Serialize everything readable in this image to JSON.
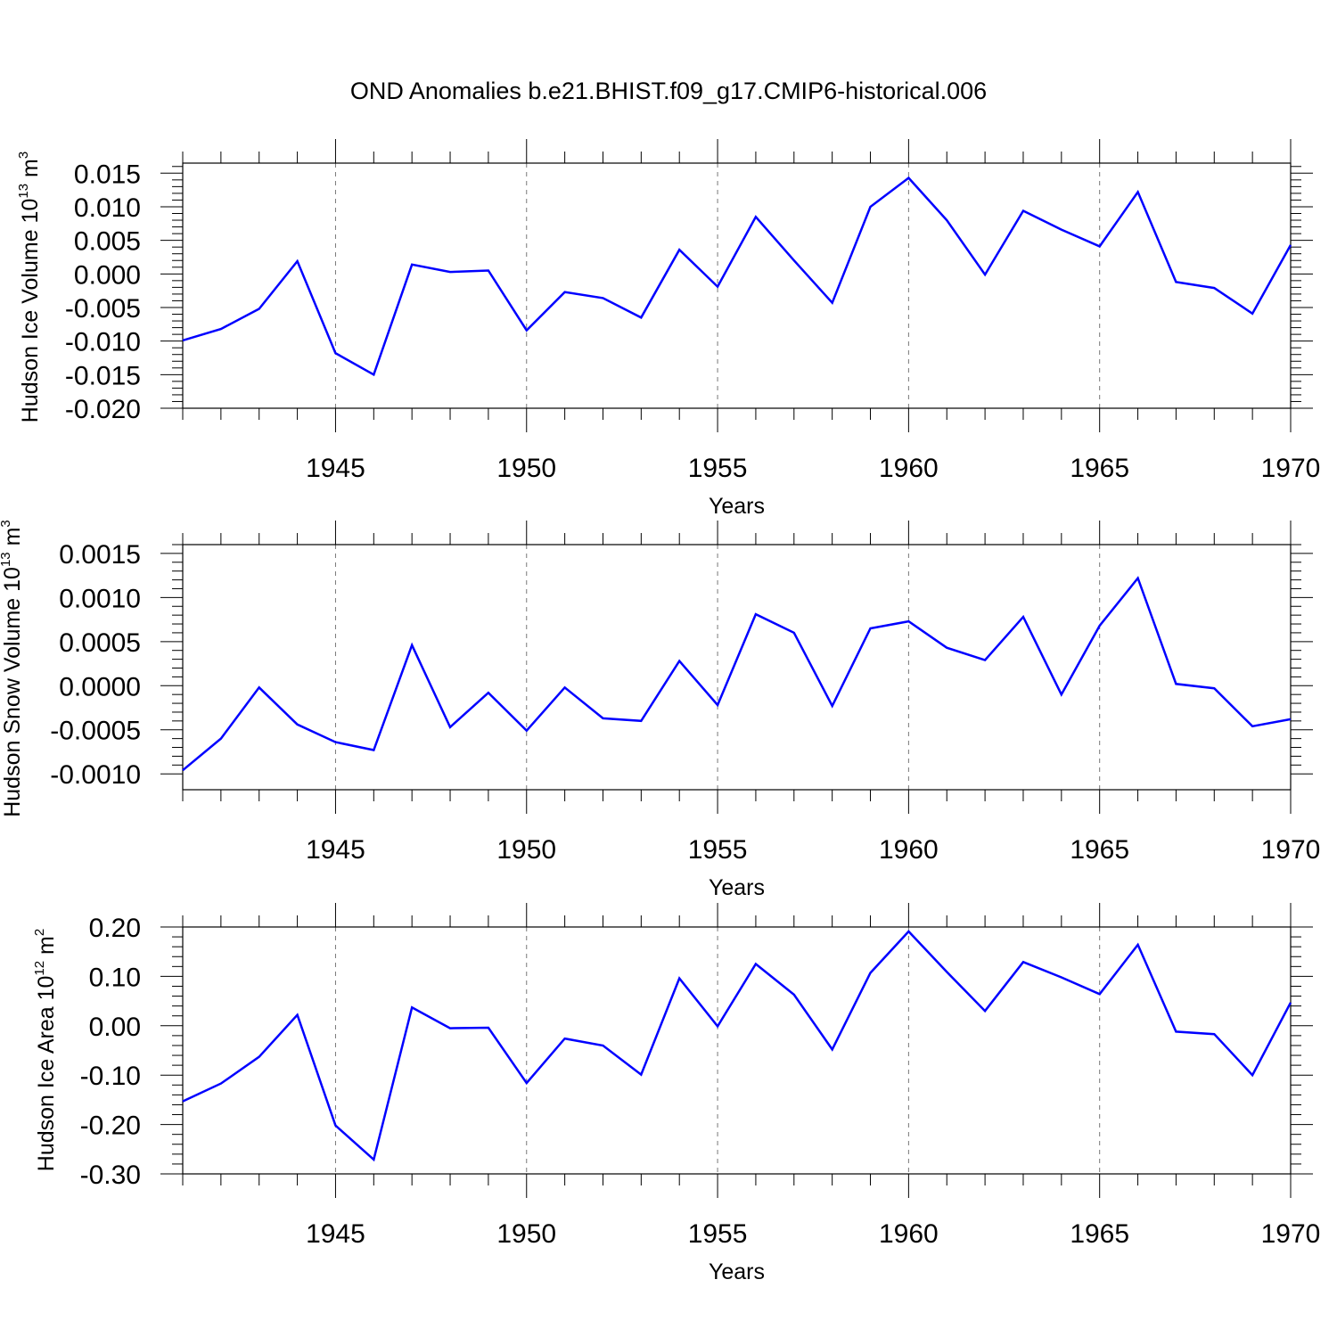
{
  "figure": {
    "title": "OND Anomalies b.e21.BHIST.f09_g17.CMIP6-historical.006"
  },
  "chart_data": [
    {
      "type": "line",
      "title": "OND Anomalies b.e21.BHIST.f09_g17.CMIP6-historical.006",
      "xlabel": "Years",
      "ylabel": {
        "pre": "Hudson Ice Volume 10",
        "sup1": "13",
        "mid": " m",
        "sup2": "3"
      },
      "xlim": [
        1941,
        1970
      ],
      "ylim": [
        -0.02,
        0.0165
      ],
      "xticks": [
        1945,
        1950,
        1955,
        1960,
        1965,
        1970
      ],
      "xtick_labels": [
        "1945",
        "1950",
        "1955",
        "1960",
        "1965",
        "1970"
      ],
      "yticks": [
        -0.02,
        -0.015,
        -0.01,
        -0.005,
        0.0,
        0.005,
        0.01,
        0.015
      ],
      "ytick_labels": [
        "-0.020",
        "-0.015",
        "-0.010",
        "-0.005",
        "0.000",
        "0.005",
        "0.010",
        "0.015"
      ],
      "series": [
        {
          "name": "Hudson Ice Volume",
          "color": "#0000ff",
          "x": [
            1941,
            1942,
            1943,
            1944,
            1945,
            1946,
            1947,
            1948,
            1949,
            1950,
            1951,
            1952,
            1953,
            1954,
            1955,
            1956,
            1957,
            1958,
            1959,
            1960,
            1961,
            1962,
            1963,
            1964,
            1965,
            1966,
            1967,
            1968,
            1969,
            1970
          ],
          "values": [
            -0.0099,
            -0.0082,
            -0.0052,
            0.0019,
            -0.0118,
            -0.015,
            0.0014,
            0.0003,
            0.0005,
            -0.0084,
            -0.0027,
            -0.0036,
            -0.0065,
            0.0036,
            -0.0019,
            0.0085,
            0.002,
            -0.0043,
            0.01,
            0.0143,
            0.008,
            -0.0001,
            0.0094,
            0.0066,
            0.0041,
            0.0122,
            -0.0012,
            -0.0021,
            -0.0059,
            0.0043
          ]
        }
      ]
    },
    {
      "type": "line",
      "xlabel": "Years",
      "ylabel": {
        "pre": "Hudson Snow Volume 10",
        "sup1": "13",
        "mid": " m",
        "sup2": "3"
      },
      "xlim": [
        1941,
        1970
      ],
      "ylim": [
        -0.00118,
        0.0016
      ],
      "xticks": [
        1945,
        1950,
        1955,
        1960,
        1965,
        1970
      ],
      "xtick_labels": [
        "1945",
        "1950",
        "1955",
        "1960",
        "1965",
        "1970"
      ],
      "yticks": [
        -0.001,
        -0.0005,
        0.0,
        0.0005,
        0.001,
        0.0015
      ],
      "ytick_labels": [
        "-0.0010",
        "-0.0005",
        "0.0000",
        "0.0005",
        "0.0010",
        "0.0015"
      ],
      "series": [
        {
          "name": "Hudson Snow Volume",
          "color": "#0000ff",
          "x": [
            1941,
            1942,
            1943,
            1944,
            1945,
            1946,
            1947,
            1948,
            1949,
            1950,
            1951,
            1952,
            1953,
            1954,
            1955,
            1956,
            1957,
            1958,
            1959,
            1960,
            1961,
            1962,
            1963,
            1964,
            1965,
            1966,
            1967,
            1968,
            1969,
            1970
          ],
          "values": [
            -0.00096,
            -0.0006,
            -2e-05,
            -0.00044,
            -0.00064,
            -0.00073,
            0.00046,
            -0.00047,
            -8e-05,
            -0.00051,
            -2e-05,
            -0.00037,
            -0.0004,
            0.00028,
            -0.00022,
            0.00081,
            0.0006,
            -0.00023,
            0.00065,
            0.00073,
            0.00043,
            0.00029,
            0.00078,
            -0.0001,
            0.00068,
            0.00122,
            2e-05,
            -3e-05,
            -0.00046,
            -0.00038
          ]
        }
      ]
    },
    {
      "type": "line",
      "xlabel": "Years",
      "ylabel": {
        "pre": "Hudson Ice Area 10",
        "sup1": "12",
        "mid": " m",
        "sup2": "2"
      },
      "xlim": [
        1941,
        1970
      ],
      "ylim": [
        -0.3,
        0.2
      ],
      "xticks": [
        1945,
        1950,
        1955,
        1960,
        1965,
        1970
      ],
      "xtick_labels": [
        "1945",
        "1950",
        "1955",
        "1960",
        "1965",
        "1970"
      ],
      "yticks": [
        -0.3,
        -0.2,
        -0.1,
        0.0,
        0.1,
        0.2
      ],
      "ytick_labels": [
        "-0.30",
        "-0.20",
        "-0.10",
        "0.00",
        "0.10",
        "0.20"
      ],
      "series": [
        {
          "name": "Hudson Ice Area",
          "color": "#0000ff",
          "x": [
            1941,
            1942,
            1943,
            1944,
            1945,
            1946,
            1947,
            1948,
            1949,
            1950,
            1951,
            1952,
            1953,
            1954,
            1955,
            1956,
            1957,
            1958,
            1959,
            1960,
            1961,
            1962,
            1963,
            1964,
            1965,
            1966,
            1967,
            1968,
            1969,
            1970
          ],
          "values": [
            -0.153,
            -0.117,
            -0.063,
            0.022,
            -0.202,
            -0.271,
            0.037,
            -0.005,
            -0.004,
            -0.116,
            -0.026,
            -0.04,
            -0.099,
            0.096,
            -0.001,
            0.125,
            0.063,
            -0.048,
            0.107,
            0.191,
            0.109,
            0.03,
            0.129,
            0.098,
            0.064,
            0.164,
            -0.012,
            -0.017,
            -0.1,
            0.047
          ]
        }
      ]
    }
  ]
}
